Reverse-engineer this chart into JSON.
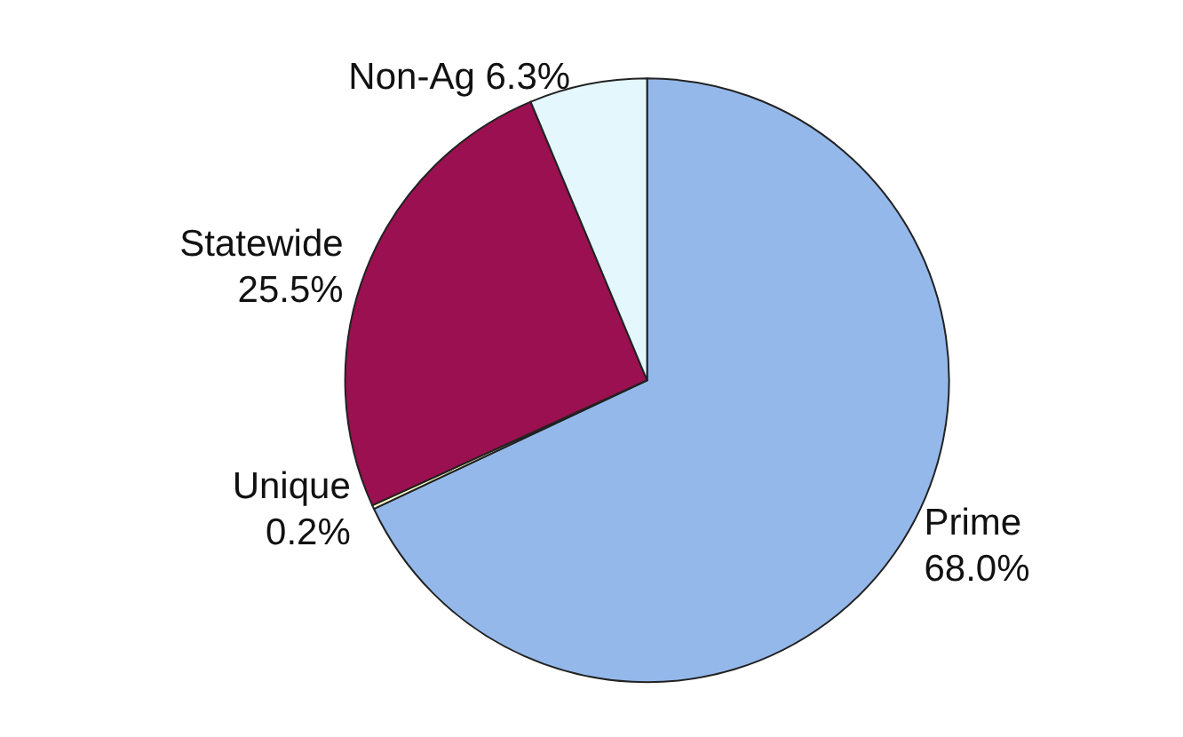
{
  "chart_data": {
    "type": "pie",
    "categories": [
      "Prime",
      "Unique",
      "Statewide",
      "Non-Ag"
    ],
    "values": [
      68.0,
      0.2,
      25.5,
      6.3
    ],
    "value_labels": [
      "68.0%",
      "0.2%",
      "25.5%",
      "6.3%"
    ],
    "colors": [
      "#94b8ea",
      "#ffffcc",
      "#9b1050",
      "#e3f7fc"
    ]
  }
}
